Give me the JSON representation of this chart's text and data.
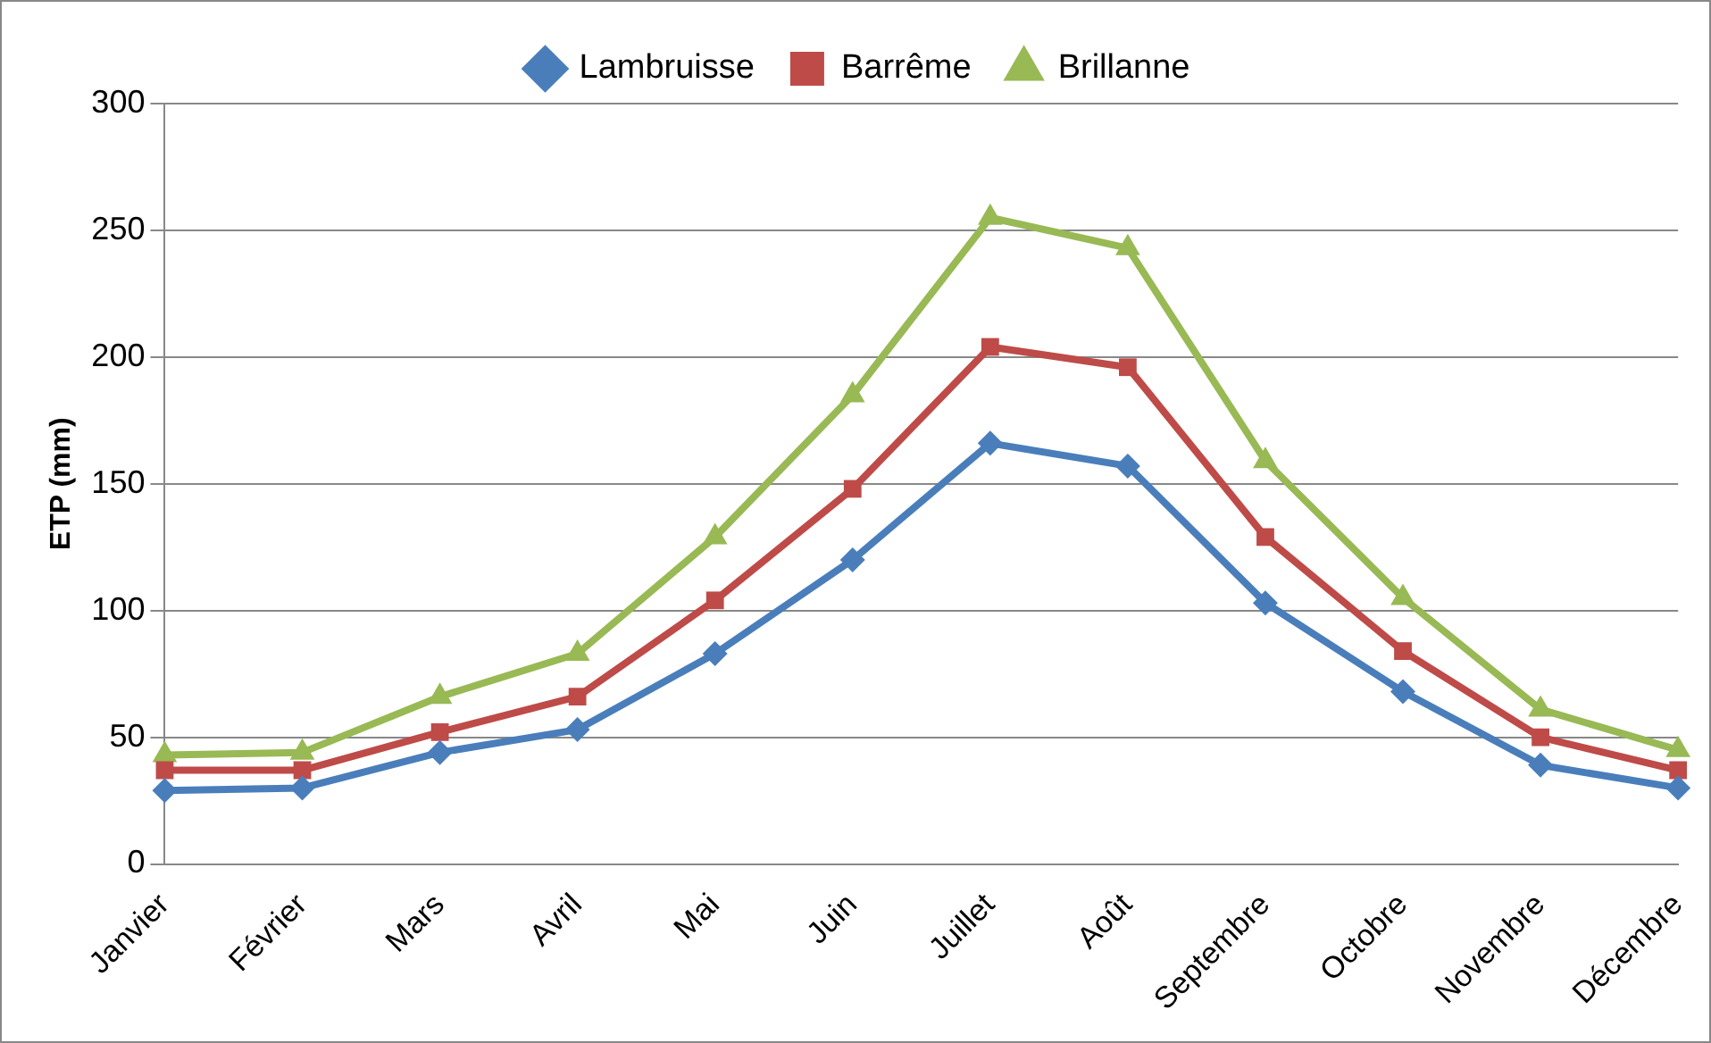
{
  "chart_data": {
    "type": "line",
    "ylabel": "ETP (mm)",
    "categories": [
      "Janvier",
      "Février",
      "Mars",
      "Avril",
      "Mai",
      "Juin",
      "Juillet",
      "Août",
      "Septembre",
      "Octobre",
      "Novembre",
      "Décembre"
    ],
    "series": [
      {
        "name": "Lambruisse",
        "color": "#4a7ebb",
        "marker": "diamond",
        "values": [
          29,
          30,
          44,
          53,
          83,
          120,
          166,
          157,
          103,
          68,
          39,
          30
        ]
      },
      {
        "name": "Barrême",
        "color": "#be4b48",
        "marker": "square",
        "values": [
          37,
          37,
          52,
          66,
          104,
          148,
          204,
          196,
          129,
          84,
          50,
          37
        ]
      },
      {
        "name": "Brillanne",
        "color": "#98b954",
        "marker": "triangle",
        "values": [
          43,
          44,
          66,
          83,
          129,
          185,
          255,
          243,
          159,
          105,
          61,
          45
        ]
      }
    ],
    "ylim": [
      0,
      300
    ],
    "yticks": [
      0,
      50,
      100,
      150,
      200,
      250,
      300
    ],
    "grid": "y",
    "legend": "top"
  }
}
